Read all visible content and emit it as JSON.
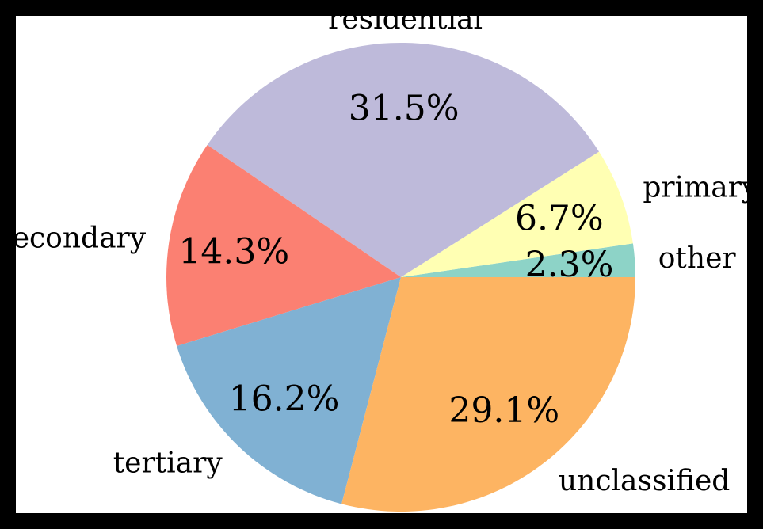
{
  "chart_data": {
    "type": "pie",
    "title": "",
    "slices": [
      {
        "label": "other",
        "value": 2.3,
        "pct_text": "2.3%",
        "color": "#8dd3c7"
      },
      {
        "label": "primary",
        "value": 6.7,
        "pct_text": "6.7%",
        "color": "#ffffb3"
      },
      {
        "label": "residential",
        "value": 31.5,
        "pct_text": "31.5%",
        "color": "#bebada"
      },
      {
        "label": "secondary",
        "value": 14.3,
        "pct_text": "14.3%",
        "color": "#fb8072"
      },
      {
        "label": "tertiary",
        "value": 16.2,
        "pct_text": "16.2%",
        "color": "#80b1d3"
      },
      {
        "label": "unclassified",
        "value": 29.1,
        "pct_text": "29.1%",
        "color": "#fdb462"
      }
    ],
    "start_angle_deg": 0,
    "direction": "counterclockwise"
  }
}
